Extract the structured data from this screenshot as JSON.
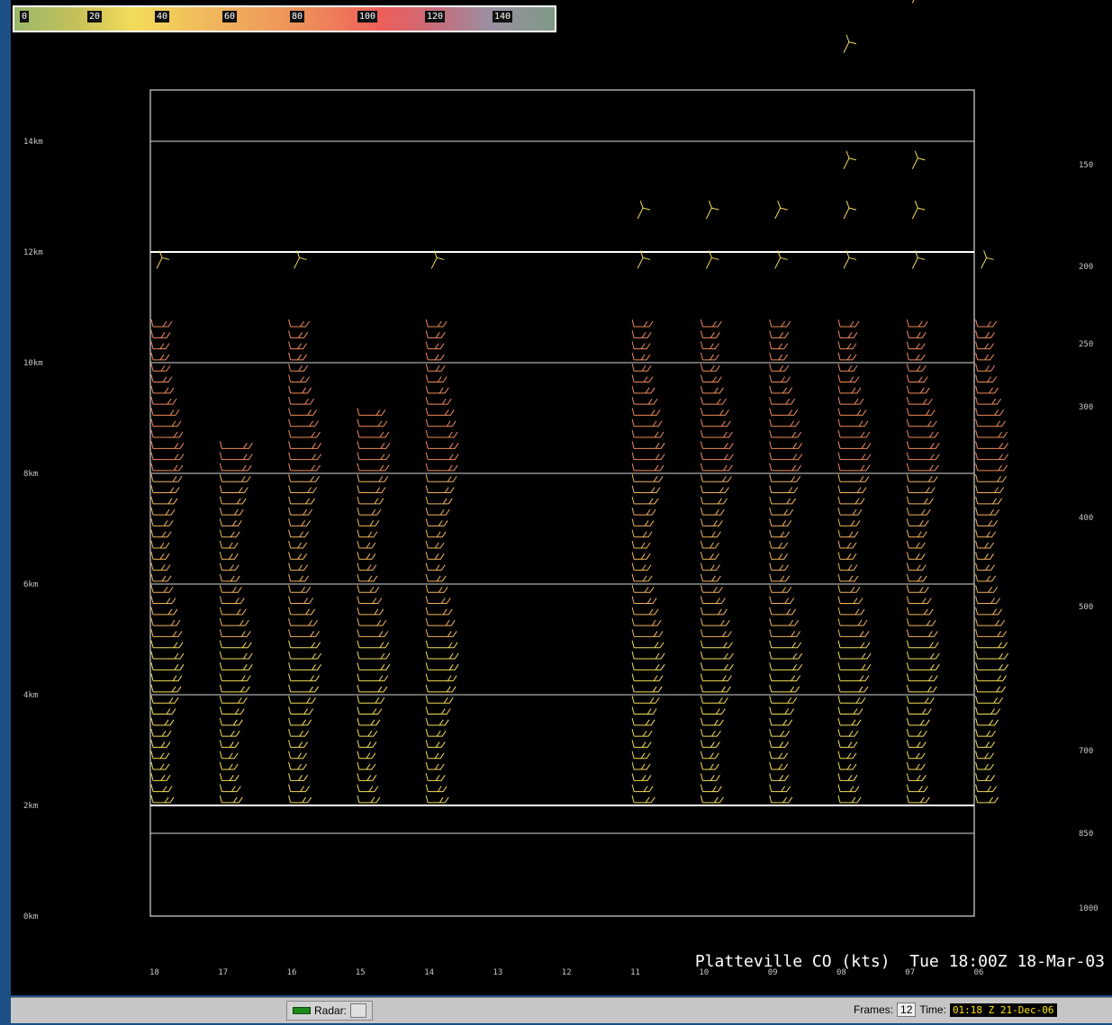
{
  "colorbar": {
    "labels": [
      "0",
      "20",
      "40",
      "60",
      "80",
      "100",
      "120",
      "140"
    ]
  },
  "chart_data": {
    "type": "wind-profile",
    "height_axis": {
      "labels": [
        "14km",
        "12km",
        "10km",
        "8km",
        "6km",
        "4km",
        "2km",
        "0km"
      ],
      "values": [
        14,
        12,
        10,
        8,
        6,
        4,
        2,
        0
      ]
    },
    "pressure_axis": {
      "labels": [
        "150",
        "200",
        "250",
        "300",
        "400",
        "500",
        "700",
        "850",
        "1000"
      ],
      "values": [
        150,
        200,
        250,
        300,
        400,
        500,
        700,
        850,
        1000
      ]
    },
    "time_axis": {
      "labels": [
        "18",
        "17",
        "16",
        "15",
        "14",
        "13",
        "12",
        "11",
        "10",
        "09",
        "08",
        "07",
        "06"
      ]
    },
    "profiles": [
      {
        "hour": "18",
        "base_km": 2,
        "top_km": 10.8,
        "extra_km": [
          11.7
        ]
      },
      {
        "hour": "17",
        "base_km": 2,
        "top_km": 8.5,
        "extra_km": []
      },
      {
        "hour": "16",
        "base_km": 2,
        "top_km": 10.8,
        "extra_km": [
          11.7
        ]
      },
      {
        "hour": "15",
        "base_km": 2,
        "top_km": 9.1,
        "extra_km": []
      },
      {
        "hour": "14",
        "base_km": 2,
        "top_km": 10.8,
        "extra_km": [
          11.7
        ]
      },
      {
        "hour": "11",
        "base_km": 2,
        "top_km": 10.8,
        "extra_km": [
          11.7,
          12.6
        ]
      },
      {
        "hour": "10",
        "base_km": 2,
        "top_km": 10.8,
        "extra_km": [
          11.7,
          12.6
        ]
      },
      {
        "hour": "09",
        "base_km": 2,
        "top_km": 10.8,
        "extra_km": [
          11.7,
          12.6
        ]
      },
      {
        "hour": "08",
        "base_km": 2,
        "top_km": 10.8,
        "extra_km": [
          11.7,
          12.6,
          13.5,
          15.6
        ]
      },
      {
        "hour": "07",
        "base_km": 2,
        "top_km": 10.8,
        "extra_km": [
          11.7,
          12.6,
          13.5,
          16.5
        ]
      },
      {
        "hour": "06",
        "base_km": 2,
        "top_km": 10.8,
        "extra_km": [
          11.7
        ]
      }
    ],
    "colors": {
      "low": "#f3dc5a",
      "mid": "#f0b35c",
      "high": "#ee8a5a"
    }
  },
  "footer": {
    "title": "Platteville CO (kts)  Tue 18:00Z 18-Mar-03"
  },
  "statusbar": {
    "radar_label": "Radar:",
    "frames_label": "Frames:",
    "frames_value": "12",
    "time_label": "Time:",
    "time_value": "01:18 Z 21-Dec-06"
  }
}
